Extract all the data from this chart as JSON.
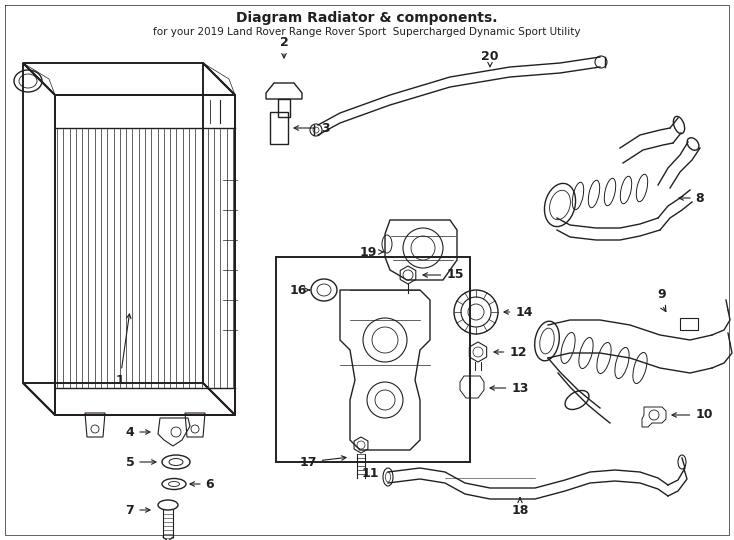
{
  "title": "Diagram Radiator & components.",
  "subtitle": "for your 2019 Land Rover Range Rover Sport  Supercharged Dynamic Sport Utility",
  "bg_color": "#ffffff",
  "line_color": "#231f20",
  "fig_width": 7.34,
  "fig_height": 5.4,
  "dpi": 100,
  "font_title": 10,
  "font_label": 9,
  "font_sub": 7.5
}
